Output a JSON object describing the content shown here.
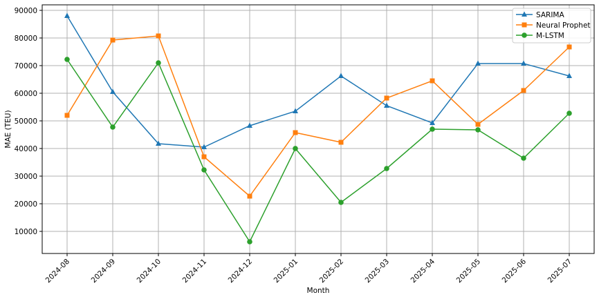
{
  "chart_data": {
    "type": "line",
    "title": "",
    "xlabel": "Month",
    "ylabel": "MAE (TEU)",
    "categories": [
      "2024-08",
      "2024-09",
      "2024-10",
      "2024-11",
      "2024-12",
      "2025-01",
      "2025-02",
      "2025-03",
      "2025-04",
      "2025-05",
      "2025-06",
      "2025-07"
    ],
    "yticks": [
      10000,
      20000,
      30000,
      40000,
      50000,
      60000,
      70000,
      80000,
      90000
    ],
    "ylim": [
      2000,
      92000
    ],
    "grid": true,
    "legend_position": "upper right",
    "series": [
      {
        "name": "SARIMA",
        "color": "#1f77b4",
        "marker": "triangle",
        "values": [
          88000,
          60500,
          41750,
          40500,
          48250,
          53500,
          66250,
          55500,
          49250,
          70750,
          70750,
          66250
        ]
      },
      {
        "name": "Neural Prophet",
        "color": "#ff7f0e",
        "marker": "square",
        "values": [
          52000,
          79250,
          80750,
          37000,
          22750,
          45750,
          42250,
          58250,
          64500,
          48750,
          61000,
          76750
        ]
      },
      {
        "name": "M-LSTM",
        "color": "#2ca02c",
        "marker": "circle",
        "values": [
          72250,
          47750,
          71000,
          32250,
          6250,
          40000,
          20500,
          32750,
          47000,
          46750,
          36500,
          52750
        ]
      }
    ]
  }
}
